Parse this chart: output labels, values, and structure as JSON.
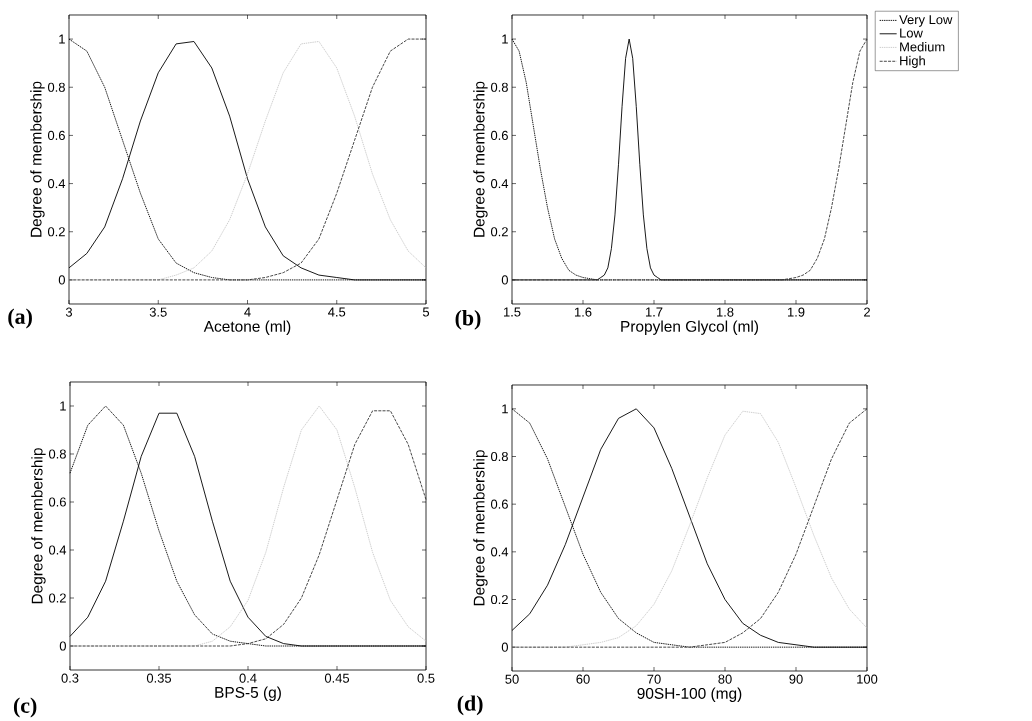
{
  "chart_data": [
    {
      "type": "line",
      "xlabel": "Acetone (ml)",
      "ylabel": "Degree of membership",
      "annotations": [
        "(a)"
      ],
      "legend": "top right",
      "xlim": [
        3,
        5
      ],
      "ylim": [
        -0.1,
        1.1
      ],
      "xticks": [
        3,
        3.5,
        4,
        4.5,
        5
      ],
      "yticks": [
        0,
        0.2,
        0.4,
        0.6,
        0.8,
        1
      ],
      "x": [
        3,
        3.1,
        3.2,
        3.3,
        3.4,
        3.5,
        3.6,
        3.7,
        3.8,
        3.9,
        4,
        4.1,
        4.2,
        4.3,
        4.4,
        4.5,
        4.6,
        4.7,
        4.8,
        4.9,
        5
      ],
      "series": [
        {
          "name": "Very Low",
          "color": "#000000",
          "line_style": "dotted",
          "values": [
            1,
            0.95,
            0.8,
            0.58,
            0.36,
            0.17,
            0.07,
            0.03,
            0.01,
            0,
            0,
            0,
            0,
            0,
            0,
            0,
            0,
            0,
            0,
            0,
            0
          ]
        },
        {
          "name": "Low",
          "color": "#000000",
          "line_style": "solid",
          "values": [
            0.05,
            0.11,
            0.22,
            0.42,
            0.66,
            0.86,
            0.98,
            0.99,
            0.88,
            0.68,
            0.42,
            0.22,
            0.1,
            0.05,
            0.02,
            0.01,
            0,
            0,
            0,
            0,
            0
          ]
        },
        {
          "name": "Medium",
          "color": "#c8c8c8",
          "line_style": "dotted",
          "values": [
            0,
            0,
            0,
            0,
            0,
            0,
            0.02,
            0.05,
            0.12,
            0.25,
            0.44,
            0.66,
            0.86,
            0.98,
            0.99,
            0.88,
            0.68,
            0.44,
            0.25,
            0.12,
            0.05
          ]
        },
        {
          "name": "High",
          "color": "#333333",
          "line_style": "dashed",
          "values": [
            0,
            0,
            0,
            0,
            0,
            0,
            0,
            0,
            0,
            0,
            0,
            0.01,
            0.03,
            0.07,
            0.17,
            0.36,
            0.58,
            0.8,
            0.95,
            1,
            1
          ]
        }
      ]
    },
    {
      "type": "line",
      "xlabel": "Propylen Glycol (ml)",
      "ylabel": "Degree of membership",
      "annotations": [
        "(b)"
      ],
      "xlim": [
        1.5,
        2
      ],
      "ylim": [
        -0.1,
        1.1
      ],
      "xticks": [
        1.5,
        1.6,
        1.7,
        1.8,
        1.9,
        2
      ],
      "yticks": [
        0,
        0.2,
        0.4,
        0.6,
        0.8,
        1
      ],
      "series": [
        {
          "color": "#000000",
          "line_style": "dotted",
          "x": [
            1.5,
            1.51,
            1.52,
            1.53,
            1.54,
            1.55,
            1.56,
            1.57,
            1.58,
            1.59,
            1.6,
            1.62,
            2
          ],
          "values": [
            1,
            0.95,
            0.82,
            0.64,
            0.46,
            0.3,
            0.17,
            0.09,
            0.04,
            0.02,
            0.01,
            0,
            0
          ]
        },
        {
          "color": "#000000",
          "line_style": "solid",
          "x": [
            1.5,
            1.62,
            1.625,
            1.63,
            1.635,
            1.64,
            1.645,
            1.65,
            1.655,
            1.66,
            1.665,
            1.67,
            1.675,
            1.68,
            1.685,
            1.69,
            1.695,
            1.7,
            1.705,
            1.71,
            2
          ],
          "values": [
            0,
            0,
            0.01,
            0.02,
            0.05,
            0.13,
            0.27,
            0.48,
            0.72,
            0.92,
            1,
            0.92,
            0.72,
            0.48,
            0.27,
            0.13,
            0.05,
            0.02,
            0.01,
            0,
            0
          ]
        },
        {
          "color": "#333333",
          "line_style": "dashed",
          "x": [
            1.5,
            1.88,
            1.9,
            1.91,
            1.92,
            1.93,
            1.94,
            1.95,
            1.96,
            1.97,
            1.98,
            1.99,
            2
          ],
          "values": [
            0,
            0,
            0.01,
            0.02,
            0.04,
            0.09,
            0.17,
            0.3,
            0.46,
            0.64,
            0.82,
            0.95,
            1
          ]
        }
      ]
    },
    {
      "type": "line",
      "xlabel": "BPS-5 (g)",
      "ylabel": "Degree of membership",
      "annotations": [
        "(c)"
      ],
      "xlim": [
        0.3,
        0.5
      ],
      "ylim": [
        -0.1,
        1.1
      ],
      "xticks": [
        0.3,
        0.35,
        0.4,
        0.45,
        0.5
      ],
      "yticks": [
        0,
        0.2,
        0.4,
        0.6,
        0.8,
        1
      ],
      "x": [
        0.3,
        0.31,
        0.32,
        0.33,
        0.34,
        0.35,
        0.36,
        0.37,
        0.38,
        0.39,
        0.4,
        0.41,
        0.42,
        0.43,
        0.44,
        0.45,
        0.46,
        0.47,
        0.48,
        0.49,
        0.5
      ],
      "series": [
        {
          "color": "#000000",
          "line_style": "dotted",
          "values": [
            0.72,
            0.92,
            1,
            0.92,
            0.72,
            0.48,
            0.27,
            0.13,
            0.05,
            0.02,
            0.01,
            0,
            0,
            0,
            0,
            0,
            0,
            0,
            0,
            0,
            0
          ]
        },
        {
          "color": "#000000",
          "line_style": "solid",
          "values": [
            0.04,
            0.12,
            0.27,
            0.52,
            0.79,
            0.97,
            0.97,
            0.79,
            0.52,
            0.27,
            0.12,
            0.04,
            0.01,
            0,
            0,
            0,
            0,
            0,
            0,
            0,
            0
          ]
        },
        {
          "color": "#c8c8c8",
          "line_style": "dotted",
          "values": [
            0,
            0,
            0,
            0,
            0,
            0,
            0,
            0,
            0.02,
            0.08,
            0.19,
            0.39,
            0.66,
            0.9,
            1,
            0.9,
            0.66,
            0.39,
            0.19,
            0.08,
            0.02
          ]
        },
        {
          "color": "#333333",
          "line_style": "dashed",
          "values": [
            0,
            0,
            0,
            0,
            0,
            0,
            0,
            0,
            0,
            0,
            0.01,
            0.03,
            0.09,
            0.2,
            0.38,
            0.61,
            0.84,
            0.98,
            0.98,
            0.84,
            0.61
          ]
        }
      ]
    },
    {
      "type": "line",
      "xlabel": "90SH-100 (mg)",
      "ylabel": "Degree of membership",
      "annotations": [
        "(d)"
      ],
      "xlim": [
        50,
        100
      ],
      "ylim": [
        -0.1,
        1.1
      ],
      "xticks": [
        50,
        60,
        70,
        80,
        90,
        100
      ],
      "yticks": [
        0,
        0.2,
        0.4,
        0.6,
        0.8,
        1
      ],
      "x": [
        50,
        52.5,
        55,
        57.5,
        60,
        62.5,
        65,
        67.5,
        70,
        72.5,
        75,
        77.5,
        80,
        82.5,
        85,
        87.5,
        90,
        92.5,
        95,
        97.5,
        100
      ],
      "series": [
        {
          "color": "#000000",
          "line_style": "dotted",
          "values": [
            1,
            0.94,
            0.79,
            0.59,
            0.39,
            0.23,
            0.12,
            0.06,
            0.02,
            0.01,
            0,
            0,
            0,
            0,
            0,
            0,
            0,
            0,
            0,
            0,
            0
          ]
        },
        {
          "color": "#000000",
          "line_style": "solid",
          "values": [
            0.07,
            0.14,
            0.26,
            0.43,
            0.63,
            0.83,
            0.96,
            1,
            0.92,
            0.75,
            0.55,
            0.35,
            0.2,
            0.1,
            0.05,
            0.02,
            0.01,
            0,
            0,
            0,
            0
          ]
        },
        {
          "color": "#c8c8c8",
          "line_style": "dotted",
          "values": [
            0,
            0,
            0,
            0,
            0.01,
            0.02,
            0.04,
            0.09,
            0.18,
            0.32,
            0.51,
            0.71,
            0.89,
            0.99,
            0.98,
            0.86,
            0.67,
            0.47,
            0.29,
            0.16,
            0.08
          ]
        },
        {
          "color": "#333333",
          "line_style": "dashed",
          "values": [
            0,
            0,
            0,
            0,
            0,
            0,
            0,
            0,
            0,
            0,
            0,
            0.01,
            0.02,
            0.06,
            0.12,
            0.23,
            0.39,
            0.59,
            0.79,
            0.94,
            1
          ]
        }
      ]
    }
  ]
}
